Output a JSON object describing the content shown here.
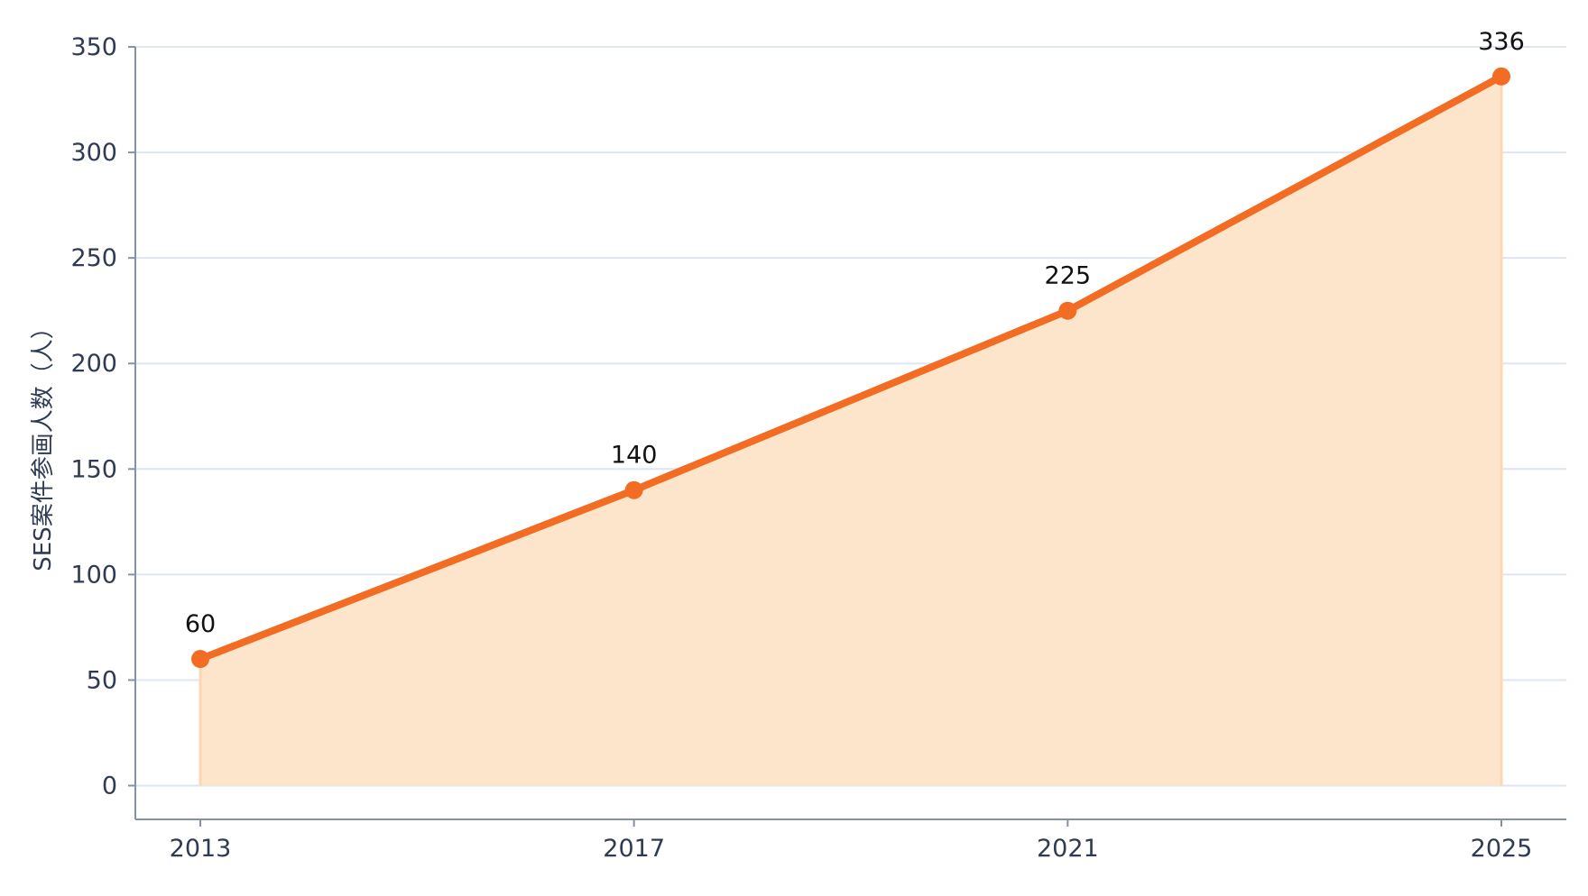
{
  "chart_data": {
    "type": "area",
    "title": "",
    "xlabel": "",
    "ylabel": "SES案件参画人数（人）",
    "x": [
      2013,
      2017,
      2021,
      2025
    ],
    "series": [
      {
        "values": [
          60,
          140,
          225,
          336
        ],
        "data_labels": [
          "60",
          "140",
          "225",
          "336"
        ]
      }
    ],
    "x_ticks": [
      "2013",
      "2017",
      "2021",
      "2025"
    ],
    "y_ticks": [
      "0",
      "50",
      "100",
      "150",
      "200",
      "250",
      "300",
      "350"
    ],
    "ylim": [
      -16,
      350
    ],
    "grid": "horizontal",
    "legend": "none",
    "colors": {
      "line": "#f26c23",
      "fill": "#fde5cc",
      "fill_edge": "#fcd8b1",
      "grid": "#dfe6f1",
      "axis": "#8592a6",
      "tick_text": "#2f3b52",
      "data_label_text": "#111111"
    }
  }
}
